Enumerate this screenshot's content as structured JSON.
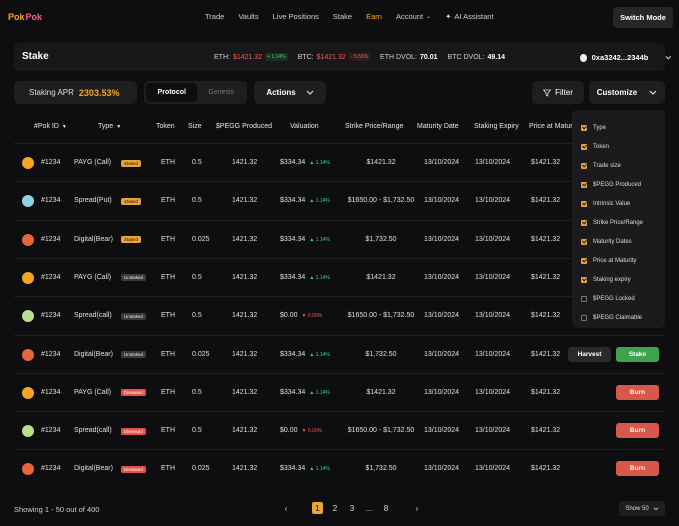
{
  "nav": {
    "logo": [
      "Pok",
      "Pok"
    ],
    "links": [
      {
        "label": "Trade",
        "active": false
      },
      {
        "label": "Vaults",
        "active": false
      },
      {
        "label": "Live Positions",
        "active": false
      },
      {
        "label": "Stake",
        "active": false
      },
      {
        "label": "Earn",
        "active": true
      },
      {
        "label": "Account",
        "active": false,
        "dropdown": true
      }
    ],
    "ai_label": "AI Assistant",
    "switch_mode": "Switch Mode"
  },
  "header": {
    "title": "Stake",
    "eth_label": "ETH:",
    "eth_price": "$1421.32",
    "eth_change": "+ 1.14%",
    "btc_label": "BTC:",
    "btc_price": "$1421.32",
    "btc_change": "- 5.55%",
    "eth_dvol_label": "ETH DVOL:",
    "eth_dvol": "70.01",
    "btc_dvol_label": "BTC DVOL:",
    "btc_dvol": "49.14",
    "wallet": "0xa3242...2344b"
  },
  "controls": {
    "apr_label": "Staking APR",
    "apr_value": "2303.53%",
    "seg_protocol": "Protocol",
    "seg_genesis": "Genesis",
    "actions": "Actions",
    "filter": "Filter",
    "customize": "Customize"
  },
  "columns": [
    "#Pok ID",
    "Type",
    "Token",
    "Size",
    "$PEGG Produced",
    "Valuation",
    "Strike Price/Range",
    "Maturity Date",
    "Staking Expiry",
    "Price at Maturity"
  ],
  "rows": [
    {
      "id": "#1234",
      "type": "PAYG (Call)",
      "status": "Staked",
      "status_class": "staked",
      "token": "ETH",
      "size": "0.5",
      "pegg": "1421.32",
      "valuation": "$334.34",
      "val_change": "▲ 1.14%",
      "val_dir": "up",
      "strike": "$1421.32",
      "maturity": "13/10/2024",
      "expiry": "13/10/2024",
      "pam": "$1421.32",
      "pet": "#f5a623",
      "actions": []
    },
    {
      "id": "#1234",
      "type": "Spread(Put)",
      "status": "Staked",
      "status_class": "staked",
      "token": "ETH",
      "size": "0.5",
      "pegg": "1421.32",
      "valuation": "$334.34",
      "val_change": "▲ 1.14%",
      "val_dir": "up",
      "strike": "$1650.00 - $1,732.50",
      "maturity": "13/10/2024",
      "expiry": "13/10/2024",
      "pam": "$1421.32",
      "pet": "#8fd3e8",
      "actions": []
    },
    {
      "id": "#1234",
      "type": "Digital(Bear)",
      "status": "Staked",
      "status_class": "staked",
      "token": "ETH",
      "size": "0.025",
      "pegg": "1421.32",
      "valuation": "$334.34",
      "val_change": "▲ 1.14%",
      "val_dir": "up",
      "strike": "$1,732.50",
      "maturity": "13/10/2024",
      "expiry": "13/10/2024",
      "pam": "$1421.32",
      "pet": "#e8663a",
      "actions": []
    },
    {
      "id": "#1234",
      "type": "PAYG (Call)",
      "status": "Unstaked",
      "status_class": "unstaked",
      "token": "ETH",
      "size": "0.5",
      "pegg": "1421.32",
      "valuation": "$334.34",
      "val_change": "▲ 1.14%",
      "val_dir": "up",
      "strike": "$1421.32",
      "maturity": "13/10/2024",
      "expiry": "13/10/2024",
      "pam": "$1421.32",
      "pet": "#f5a623",
      "actions": []
    },
    {
      "id": "#1234",
      "type": "Spread(call)",
      "status": "Unstaked",
      "status_class": "unstaked",
      "token": "ETH",
      "size": "0.5",
      "pegg": "1421.32",
      "valuation": "$0.00",
      "val_change": "▼ 0.00%",
      "val_dir": "down",
      "strike": "$1650.00 - $1,732.50",
      "maturity": "13/10/2024",
      "expiry": "13/10/2024",
      "pam": "$1421.32",
      "pet": "#b6e08a",
      "actions": []
    },
    {
      "id": "#1234",
      "type": "Digital(Bear)",
      "status": "Unstaked",
      "status_class": "unstaked",
      "token": "ETH",
      "size": "0.025",
      "pegg": "1421.32",
      "valuation": "$334.34",
      "val_change": "▲ 1.14%",
      "val_dir": "up",
      "strike": "$1,732.50",
      "maturity": "13/10/2024",
      "expiry": "13/10/2024",
      "pam": "$1421.32",
      "pet": "#e8663a",
      "actions": [
        "Harvest",
        "Stake"
      ]
    },
    {
      "id": "#1234",
      "type": "PAYG (Call)",
      "status": "Diseased",
      "status_class": "diseased",
      "token": "ETH",
      "size": "0.5",
      "pegg": "1421.32",
      "valuation": "$334.34",
      "val_change": "▲ 1.14%",
      "val_dir": "up",
      "strike": "$1421.32",
      "maturity": "13/10/2024",
      "expiry": "13/10/2024",
      "pam": "$1421.32",
      "pet": "#f5a623",
      "actions": [
        "Burn"
      ]
    },
    {
      "id": "#1234",
      "type": "Spread(call)",
      "status": "Diseased",
      "status_class": "diseased",
      "token": "ETH",
      "size": "0.5",
      "pegg": "1421.32",
      "valuation": "$0.00",
      "val_change": "▼ 0.00%",
      "val_dir": "down",
      "strike": "$1650.00 - $1,732.50",
      "maturity": "13/10/2024",
      "expiry": "13/10/2024",
      "pam": "$1421.32",
      "pet": "#b6e08a",
      "actions": [
        "Burn"
      ]
    },
    {
      "id": "#1234",
      "type": "Digital(Bear)",
      "status": "Diseased",
      "status_class": "diseased",
      "token": "ETH",
      "size": "0.025",
      "pegg": "1421.32",
      "valuation": "$334.34",
      "val_change": "▲ 1.14%",
      "val_dir": "up",
      "strike": "$1,732.50",
      "maturity": "13/10/2024",
      "expiry": "13/10/2024",
      "pam": "$1421.32",
      "pet": "#e8663a",
      "actions": [
        "Burn"
      ]
    }
  ],
  "customize_menu": [
    {
      "label": "Type",
      "checked": true
    },
    {
      "label": "Token",
      "checked": true
    },
    {
      "label": "Trade size",
      "checked": true
    },
    {
      "label": "$PEGG Produced",
      "checked": true
    },
    {
      "label": "Intrinsic Value",
      "checked": true
    },
    {
      "label": "Strike Price/Range",
      "checked": true
    },
    {
      "label": "Maturity Dates",
      "checked": true
    },
    {
      "label": "Price at Maturity",
      "checked": true
    },
    {
      "label": "Staking expiry",
      "checked": true
    },
    {
      "label": "$PEGG Locked",
      "checked": false
    },
    {
      "label": "$PEGG Claimable",
      "checked": false
    }
  ],
  "footer": {
    "showing": "Showing 1 - 50 out of 400",
    "pages": [
      "1",
      "2",
      "3",
      "...",
      "8"
    ],
    "current_page": "1",
    "show_select": "Show 50"
  }
}
